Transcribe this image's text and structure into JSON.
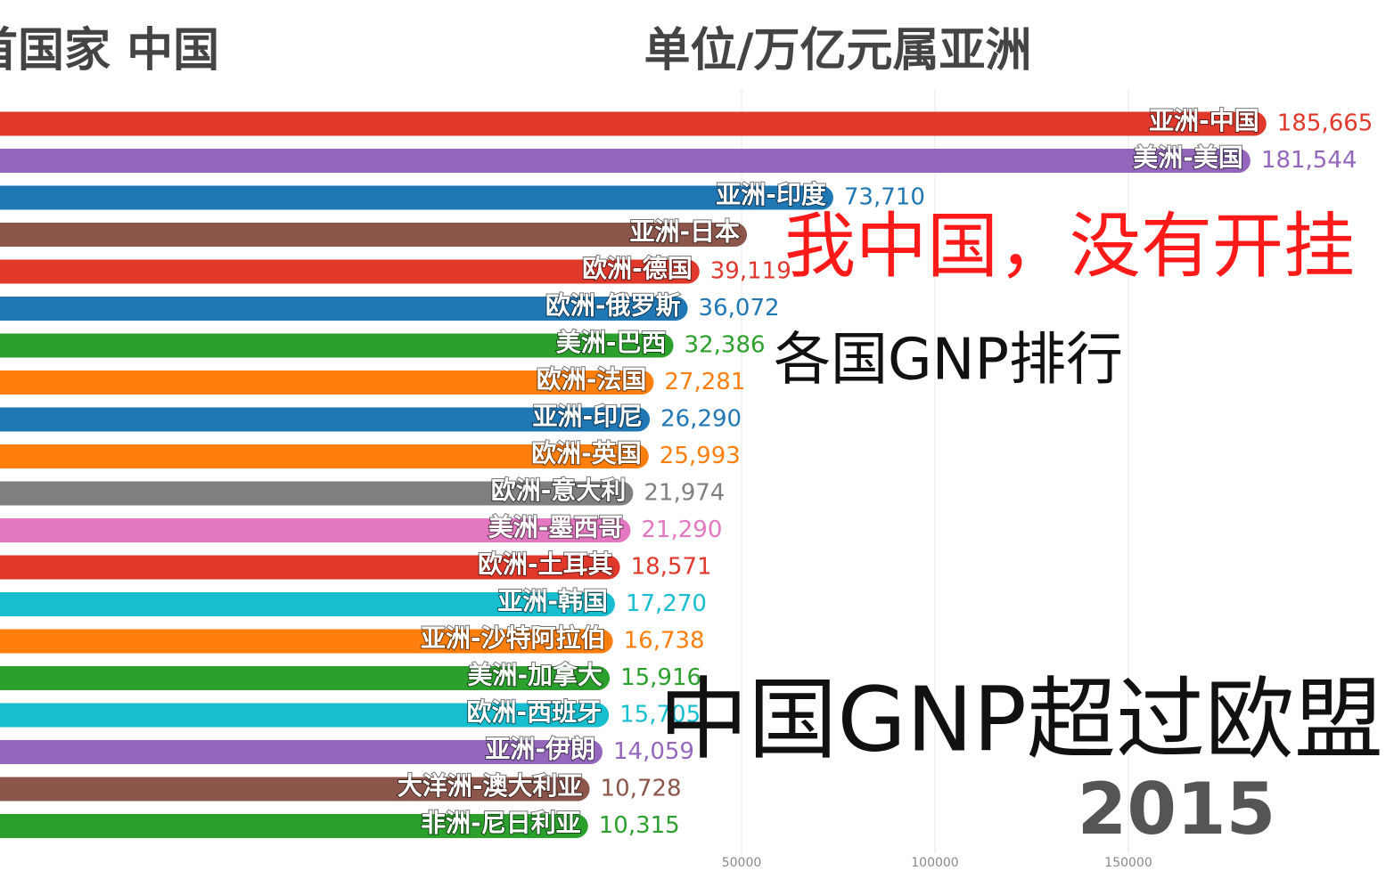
{
  "chart_data": {
    "type": "bar_race",
    "title": "单位/万亿元属亚洲",
    "subtitle": "首国家 中国",
    "annotations": [
      "我中国，没有开挂",
      "各国GNP排行",
      "中国GNP超过欧盟"
    ],
    "year": "2015",
    "categories": [
      "亚洲-中国",
      "美洲-美国",
      "亚洲-印度",
      "亚洲-日本",
      "欧洲-德国",
      "欧洲-俄罗斯",
      "美洲-巴西",
      "欧洲-法国",
      "亚洲-印尼",
      "欧洲-英国",
      "欧洲-意大利",
      "美洲-墨西哥",
      "欧洲-土耳其",
      "亚洲-韩国",
      "亚洲-沙特阿拉伯",
      "美洲-加拿大",
      "欧洲-西班牙",
      "亚洲-伊朗",
      "大洋洲-澳大利亚",
      "非洲-尼日利亚"
    ],
    "values": [
      185665,
      181544,
      73710,
      51400,
      39119,
      36072,
      32386,
      27281,
      26290,
      25993,
      21974,
      21290,
      18571,
      17270,
      16738,
      15916,
      15705,
      14059,
      10728,
      10315
    ],
    "value_labels": [
      "185,665",
      "181,544",
      "73,710",
      null,
      "39,119",
      "36,072",
      "32,386",
      "27,281",
      "26,290",
      "25,993",
      "21,974",
      "21,290",
      "18,571",
      "17,270",
      "16,738",
      "15,916",
      "15,705",
      "14,059",
      "10,728",
      "10,315"
    ],
    "colors": [
      "#e0392b",
      "#9467bd",
      "#1f77b4",
      "#8c564b",
      "#e0392b",
      "#1f77b4",
      "#2ca02c",
      "#ff7f0e",
      "#1f77b4",
      "#ff7f0e",
      "#7f7f7f",
      "#e377c2",
      "#e0392b",
      "#17becf",
      "#ff7f0e",
      "#2ca02c",
      "#17becf",
      "#9467bd",
      "#8c564b",
      "#2ca02c"
    ],
    "xlim": [
      -141700,
      218660
    ],
    "xticks": [
      50000,
      100000,
      150000
    ],
    "grid": true
  }
}
